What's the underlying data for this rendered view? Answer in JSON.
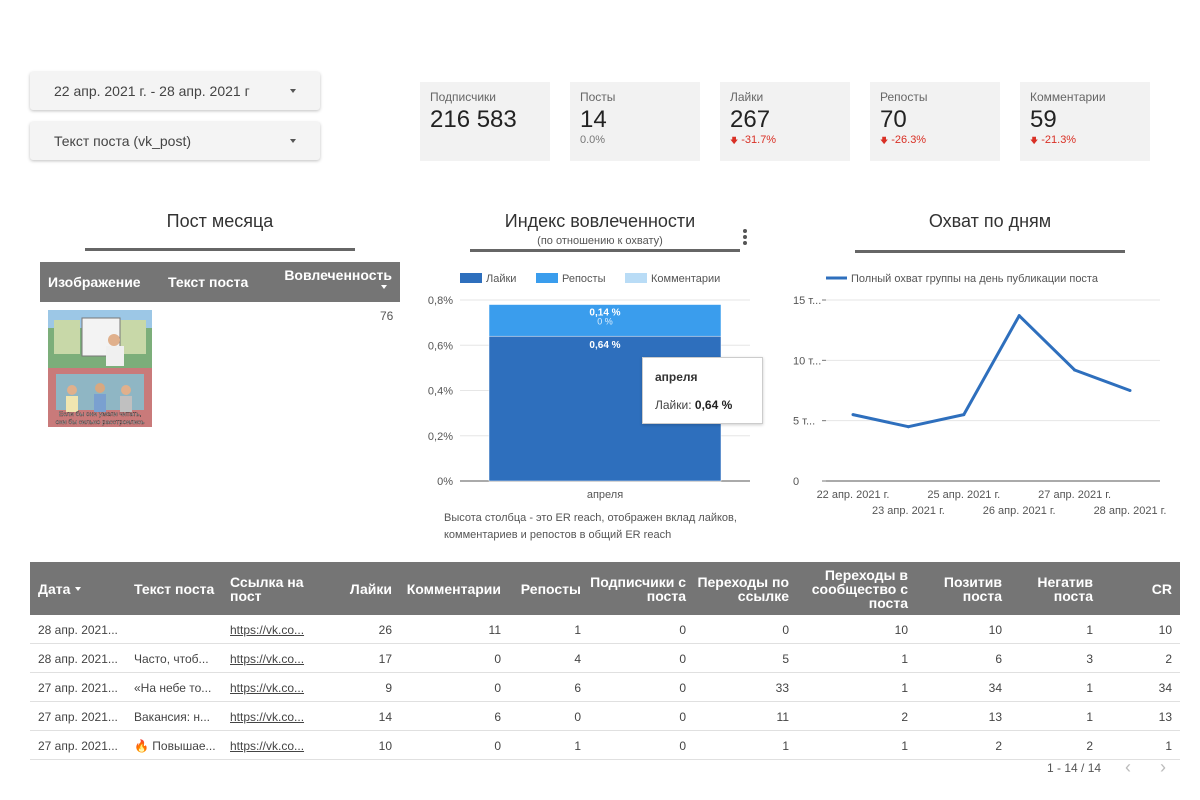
{
  "filters": {
    "date_range": "22 апр. 2021 г. - 28 апр. 2021 г",
    "post_text": "Текст поста (vk_post)"
  },
  "kpis": [
    {
      "label": "Подписчики",
      "value": "216 583",
      "delta": ""
    },
    {
      "label": "Посты",
      "value": "14",
      "delta": "0.0%"
    },
    {
      "label": "Лайки",
      "value": "267",
      "delta": "-31.7%"
    },
    {
      "label": "Репосты",
      "value": "70",
      "delta": "-26.3%"
    },
    {
      "label": "Комментарии",
      "value": "59",
      "delta": "-21.3%"
    }
  ],
  "post_month": {
    "title": "Пост месяца",
    "col_image": "Изображение",
    "col_text": "Текст поста",
    "col_engagement": "Вовлеченность",
    "engagement_value": "76",
    "caption": "Если бы они умели читать, они бы сильно расстроились"
  },
  "engagement": {
    "title": "Индекс вовлеченности",
    "subtitle": "(по отношению к охвату)",
    "footnote": "Высота столбца - это ER reach, отображен вклад лайков, комментариев  и репостов в общий ER reach",
    "tooltip_title": "апреля",
    "tooltip_label": "Лайки:",
    "tooltip_value": "0,64 %"
  },
  "reach": {
    "title": "Охват по дням"
  },
  "colors": {
    "likes": "#2e6fbd",
    "reposts": "#3a9ded",
    "comments": "#b9dcf6",
    "reach_line": "#2e6fbd",
    "negative": "#d93025"
  },
  "chart_data": [
    {
      "type": "bar",
      "stacked": true,
      "categories": [
        "апреля"
      ],
      "series": [
        {
          "name": "Лайки",
          "values": [
            0.64
          ],
          "label": "0,64 %"
        },
        {
          "name": "Репосты",
          "values": [
            0.14
          ],
          "label": "0,14 %"
        },
        {
          "name": "Комментарии",
          "values": [
            0.0
          ],
          "label": "0 %"
        }
      ],
      "y_ticks": [
        "0%",
        "0,2%",
        "0,4%",
        "0,6%",
        "0,8%"
      ],
      "ylim": [
        0,
        0.8
      ],
      "legend": "top",
      "grid": true
    },
    {
      "type": "line",
      "x": [
        "22 апр. 2021 г.",
        "23 апр. 2021 г.",
        "25 апр. 2021 г.",
        "26 апр. 2021 г.",
        "27 апр. 2021 г.",
        "28 апр. 2021 г."
      ],
      "series": [
        {
          "name": "Полный охват группы на день публикации поста",
          "values": [
            5500,
            4500,
            5500,
            13700,
            9200,
            7500
          ]
        }
      ],
      "y_ticks": [
        "0",
        "5 т...",
        "10 т...",
        "15 т..."
      ],
      "ylim": [
        0,
        15000
      ],
      "legend": "top",
      "grid": true
    }
  ],
  "table": {
    "headers": [
      "Дата",
      "Текст поста",
      "Ссылка на пост",
      "Лайки",
      "Комментарии",
      "Репосты",
      "Подписчики с поста",
      "Переходы по ссылке",
      "Переходы в сообщество с поста",
      "Позитив поста",
      "Негатив поста",
      "CR"
    ],
    "rows": [
      [
        "28 апр. 2021...",
        "",
        "https://vk.co...",
        "26",
        "11",
        "1",
        "0",
        "0",
        "10",
        "10",
        "1",
        "10"
      ],
      [
        "28 апр. 2021...",
        "Часто, чтоб...",
        "https://vk.co...",
        "17",
        "0",
        "4",
        "0",
        "5",
        "1",
        "6",
        "3",
        "2"
      ],
      [
        "27 апр. 2021...",
        "«На небе то...",
        "https://vk.co...",
        "9",
        "0",
        "6",
        "0",
        "33",
        "1",
        "34",
        "1",
        "34"
      ],
      [
        "27 апр. 2021...",
        "Вакансия: н...",
        "https://vk.co...",
        "14",
        "6",
        "0",
        "0",
        "11",
        "2",
        "13",
        "1",
        "13"
      ],
      [
        "27 апр. 2021...",
        "🔥 Повышае...",
        "https://vk.co...",
        "10",
        "0",
        "1",
        "0",
        "1",
        "1",
        "2",
        "2",
        "1"
      ]
    ],
    "pagination": "1 - 14 / 14"
  }
}
